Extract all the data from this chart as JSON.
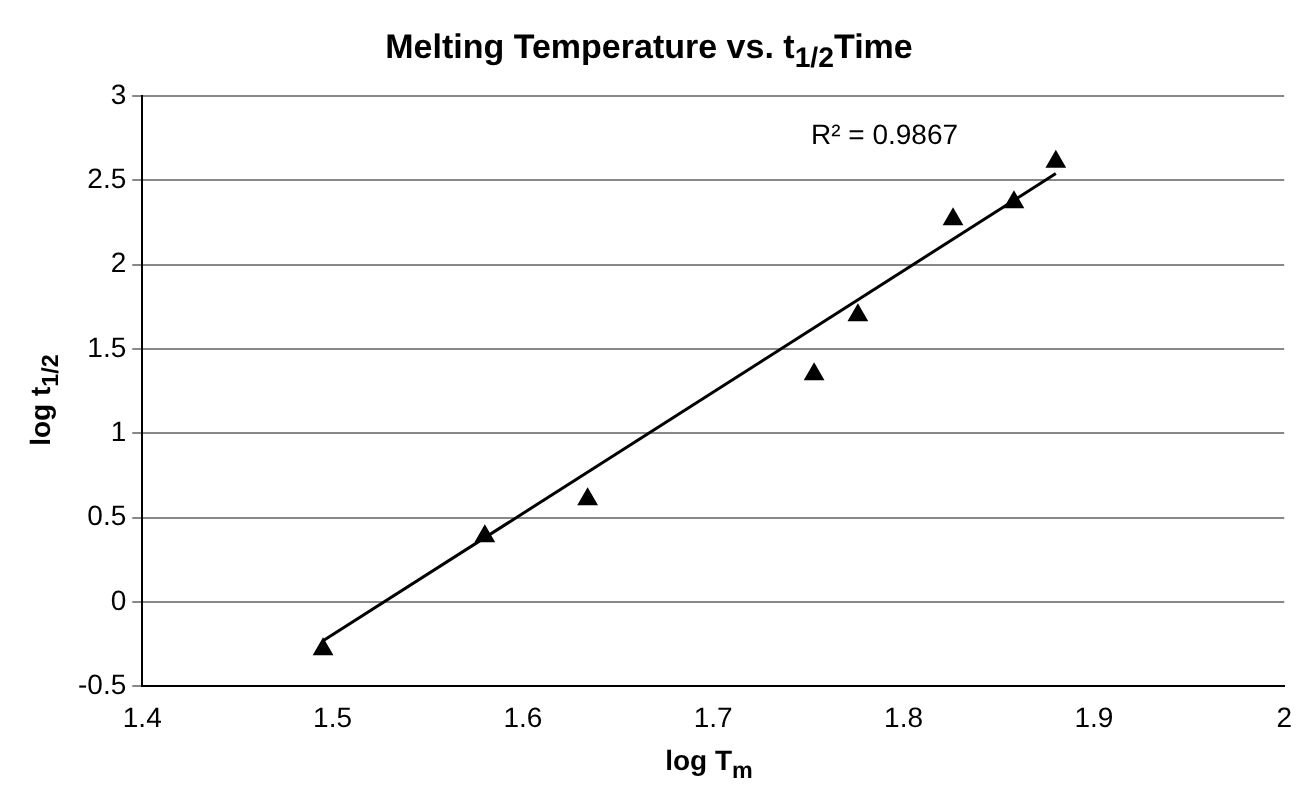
{
  "chart_data": {
    "type": "scatter",
    "title": "Melting Temperature vs. t$_{1/2}$Time",
    "xlabel": "log T$_{m}$",
    "ylabel": "log t$_{1/2}$",
    "series": [
      {
        "type": "scatter",
        "color": "#000000",
        "marker": "triangle",
        "x": [
          1.495,
          1.58,
          1.634,
          1.753,
          1.776,
          1.826,
          1.858,
          1.88
        ],
        "values": [
          -0.28,
          0.39,
          0.61,
          1.35,
          1.7,
          2.27,
          2.37,
          2.61
        ]
      },
      {
        "type": "line",
        "color": "#000000",
        "marker": "none",
        "line_style": "solid",
        "x": [
          1.495,
          1.88
        ],
        "values": [
          -0.23,
          2.54
        ]
      }
    ],
    "annotations": [
      "R² = 0.9867"
    ],
    "xlim": [
      1.4,
      2
    ],
    "xticks": [
      1.4,
      1.5,
      1.6,
      1.7,
      1.8,
      1.9,
      2
    ],
    "ylim": [
      -0.5,
      3
    ],
    "yticks": [
      -0.5,
      0,
      0.5,
      1,
      1.5,
      2,
      2.5,
      3
    ],
    "grid": "y",
    "legend": false
  }
}
